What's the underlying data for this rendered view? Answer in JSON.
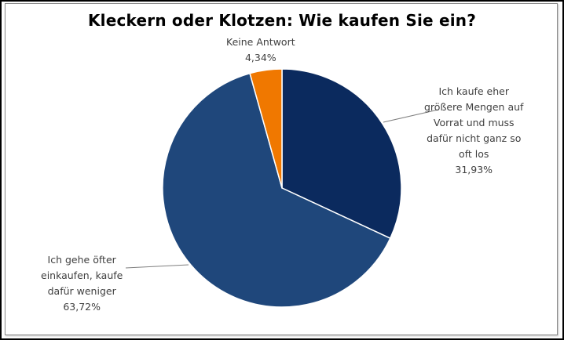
{
  "chart_data": {
    "type": "pie",
    "title": "Kleckern oder Klotzen: Wie kaufen Sie ein?",
    "slices": [
      {
        "name": "Ich kaufe eher größere Mengen auf Vorrat und muss dafür nicht ganz so oft los",
        "label_lines": [
          "Ich kaufe eher",
          "größere Mengen auf",
          "Vorrat und muss",
          "dafür nicht ganz so",
          "oft los"
        ],
        "value": 31.93,
        "value_label": "31,93%",
        "color": "#0b2a5e"
      },
      {
        "name": "Ich gehe öfter einkaufen, kaufe dafür weniger",
        "label_lines": [
          "Ich gehe öfter",
          "einkaufen, kaufe",
          "dafür weniger"
        ],
        "value": 63.72,
        "value_label": "63,72%",
        "color": "#1f477b"
      },
      {
        "name": "Keine Antwort",
        "label_lines": [
          "Keine Antwort"
        ],
        "value": 4.34,
        "value_label": "4,34%",
        "color": "#f07800"
      }
    ],
    "start_angle_deg": 0,
    "direction": "clockwise",
    "legend": "none"
  },
  "colors": {
    "leader_line": "#7f7f7f",
    "slice_border": "#ffffff"
  }
}
